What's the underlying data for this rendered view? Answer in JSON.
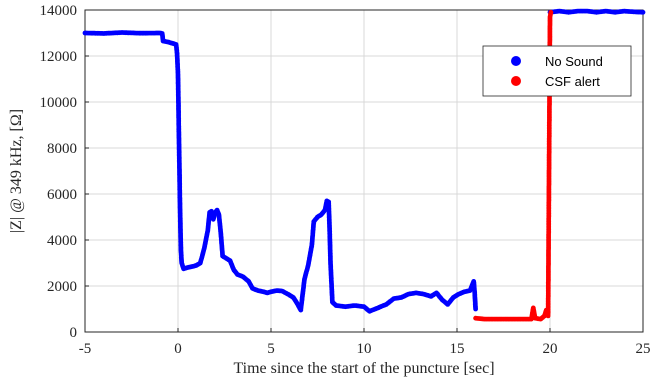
{
  "chart_data": {
    "type": "scatter",
    "xlabel": "Time since the start of the puncture [sec]",
    "ylabel": "|Z| @ 349 kHz, [Ω]",
    "xlim": [
      -5,
      25
    ],
    "ylim": [
      0,
      14000
    ],
    "x_ticks": [
      -5,
      0,
      5,
      10,
      15,
      20,
      25
    ],
    "y_ticks": [
      0,
      2000,
      4000,
      6000,
      8000,
      10000,
      12000,
      14000
    ],
    "grid": true,
    "legend_position": "top-right",
    "series": [
      {
        "name": "No Sound",
        "color": "#0000ff",
        "points": [
          [
            -5.0,
            13000
          ],
          [
            -4.0,
            12980
          ],
          [
            -3.0,
            13020
          ],
          [
            -2.0,
            12990
          ],
          [
            -1.0,
            13000
          ],
          [
            -0.85,
            12980
          ],
          [
            -0.8,
            12650
          ],
          [
            -0.5,
            12600
          ],
          [
            -0.3,
            12550
          ],
          [
            -0.1,
            12500
          ],
          [
            -0.05,
            12100
          ],
          [
            0.0,
            11200
          ],
          [
            0.02,
            10200
          ],
          [
            0.04,
            9000
          ],
          [
            0.06,
            8000
          ],
          [
            0.08,
            7000
          ],
          [
            0.1,
            5800
          ],
          [
            0.12,
            5000
          ],
          [
            0.14,
            4200
          ],
          [
            0.16,
            3500
          ],
          [
            0.2,
            3000
          ],
          [
            0.3,
            2750
          ],
          [
            0.5,
            2800
          ],
          [
            0.8,
            2850
          ],
          [
            1.0,
            2900
          ],
          [
            1.2,
            3000
          ],
          [
            1.4,
            3600
          ],
          [
            1.6,
            4400
          ],
          [
            1.7,
            5200
          ],
          [
            1.8,
            5250
          ],
          [
            1.9,
            4900
          ],
          [
            2.0,
            5200
          ],
          [
            2.1,
            5300
          ],
          [
            2.2,
            5100
          ],
          [
            2.3,
            4300
          ],
          [
            2.4,
            3300
          ],
          [
            2.6,
            3200
          ],
          [
            2.8,
            3100
          ],
          [
            3.0,
            2700
          ],
          [
            3.2,
            2500
          ],
          [
            3.5,
            2400
          ],
          [
            3.8,
            2200
          ],
          [
            4.0,
            1900
          ],
          [
            4.3,
            1800
          ],
          [
            4.6,
            1750
          ],
          [
            4.8,
            1700
          ],
          [
            5.0,
            1750
          ],
          [
            5.3,
            1800
          ],
          [
            5.6,
            1780
          ],
          [
            5.9,
            1650
          ],
          [
            6.2,
            1500
          ],
          [
            6.4,
            1250
          ],
          [
            6.6,
            950
          ],
          [
            6.8,
            2300
          ],
          [
            7.0,
            2900
          ],
          [
            7.2,
            3800
          ],
          [
            7.3,
            4800
          ],
          [
            7.5,
            5000
          ],
          [
            7.7,
            5100
          ],
          [
            7.9,
            5300
          ],
          [
            8.0,
            5700
          ],
          [
            8.1,
            5650
          ],
          [
            8.15,
            4500
          ],
          [
            8.2,
            3000
          ],
          [
            8.3,
            1300
          ],
          [
            8.5,
            1150
          ],
          [
            9.0,
            1100
          ],
          [
            9.5,
            1150
          ],
          [
            10.0,
            1100
          ],
          [
            10.3,
            900
          ],
          [
            10.6,
            1000
          ],
          [
            10.9,
            1100
          ],
          [
            11.2,
            1200
          ],
          [
            11.6,
            1450
          ],
          [
            12.0,
            1500
          ],
          [
            12.4,
            1650
          ],
          [
            12.8,
            1700
          ],
          [
            13.2,
            1650
          ],
          [
            13.6,
            1550
          ],
          [
            13.9,
            1700
          ],
          [
            14.2,
            1400
          ],
          [
            14.5,
            1200
          ],
          [
            14.8,
            1500
          ],
          [
            15.1,
            1650
          ],
          [
            15.4,
            1750
          ],
          [
            15.7,
            1800
          ],
          [
            15.9,
            2200
          ],
          [
            15.95,
            1700
          ],
          [
            16.0,
            1000
          ],
          [
            20.0,
            13900
          ],
          [
            20.5,
            13950
          ],
          [
            21.0,
            13900
          ],
          [
            21.5,
            13950
          ],
          [
            22.0,
            13950
          ],
          [
            22.5,
            13900
          ],
          [
            23.0,
            13950
          ],
          [
            23.5,
            13900
          ],
          [
            24.0,
            13950
          ],
          [
            24.5,
            13920
          ],
          [
            25.0,
            13900
          ]
        ]
      },
      {
        "name": "CSF alert",
        "color": "#ff0000",
        "points": [
          [
            16.0,
            600
          ],
          [
            16.5,
            560
          ],
          [
            17.0,
            560
          ],
          [
            17.5,
            560
          ],
          [
            18.0,
            560
          ],
          [
            18.5,
            560
          ],
          [
            19.0,
            560
          ],
          [
            19.1,
            1050
          ],
          [
            19.2,
            600
          ],
          [
            19.5,
            560
          ],
          [
            19.7,
            700
          ],
          [
            19.8,
            950
          ],
          [
            19.9,
            700
          ],
          [
            20.0,
            13700
          ],
          [
            20.05,
            13900
          ]
        ]
      }
    ]
  }
}
